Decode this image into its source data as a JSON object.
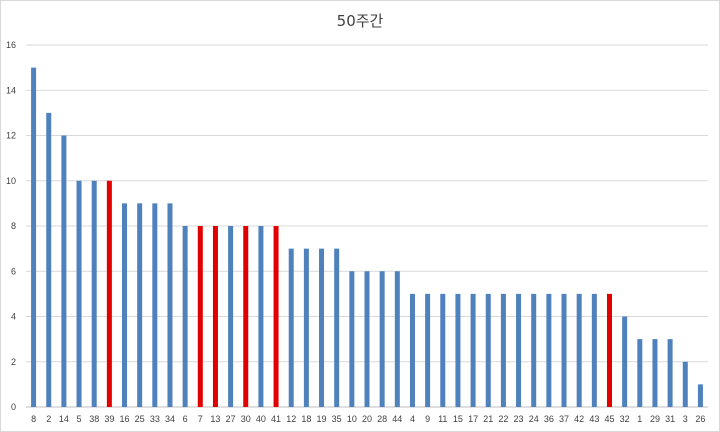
{
  "chart_data": {
    "type": "bar",
    "title": "50주간",
    "xlabel": "",
    "ylabel": "",
    "ylim": [
      0,
      16
    ],
    "yticks": [
      0,
      2,
      4,
      6,
      8,
      10,
      12,
      14,
      16
    ],
    "grid": true,
    "colors": {
      "default": "#4f81bd",
      "highlight": "#e00000",
      "grid": "#d9d9d9"
    },
    "categories": [
      "8",
      "2",
      "14",
      "5",
      "38",
      "39",
      "16",
      "25",
      "33",
      "34",
      "6",
      "7",
      "13",
      "27",
      "30",
      "40",
      "41",
      "12",
      "18",
      "19",
      "35",
      "10",
      "20",
      "28",
      "44",
      "4",
      "9",
      "11",
      "15",
      "17",
      "21",
      "22",
      "23",
      "24",
      "36",
      "37",
      "42",
      "43",
      "45",
      "32",
      "1",
      "29",
      "31",
      "3",
      "26"
    ],
    "values": [
      15,
      13,
      12,
      10,
      10,
      10,
      9,
      9,
      9,
      9,
      8,
      8,
      8,
      8,
      8,
      8,
      8,
      7,
      7,
      7,
      7,
      6,
      6,
      6,
      6,
      5,
      5,
      5,
      5,
      5,
      5,
      5,
      5,
      5,
      5,
      5,
      5,
      5,
      5,
      4,
      3,
      3,
      3,
      2,
      1
    ],
    "highlighted": [
      "39",
      "7",
      "13",
      "30",
      "41",
      "45"
    ]
  }
}
